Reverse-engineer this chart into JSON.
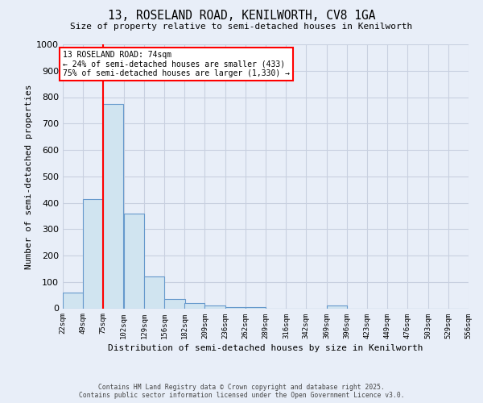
{
  "title": "13, ROSELAND ROAD, KENILWORTH, CV8 1GA",
  "subtitle": "Size of property relative to semi-detached houses in Kenilworth",
  "xlabel": "Distribution of semi-detached houses by size in Kenilworth",
  "ylabel": "Number of semi-detached properties",
  "footer_line1": "Contains HM Land Registry data © Crown copyright and database right 2025.",
  "footer_line2": "Contains public sector information licensed under the Open Government Licence v3.0.",
  "annotation_line1": "13 ROSELAND ROAD: 74sqm",
  "annotation_line2": "← 24% of semi-detached houses are smaller (433)",
  "annotation_line3": "75% of semi-detached houses are larger (1,330) →",
  "bar_color": "#d0e4f0",
  "bar_edge_color": "#6699cc",
  "background_color": "#e8eef8",
  "grid_color": "#c8d0e0",
  "red_line_x": 75,
  "bin_starts": [
    22,
    49,
    75,
    102,
    129,
    156,
    182,
    209,
    236,
    262,
    289,
    316,
    342,
    369,
    396,
    423,
    449,
    476,
    503,
    529,
    556
  ],
  "bar_heights": [
    60,
    415,
    775,
    360,
    120,
    35,
    20,
    10,
    5,
    5,
    0,
    0,
    0,
    10,
    0,
    0,
    0,
    0,
    0,
    0
  ],
  "ylim": [
    0,
    1000
  ],
  "yticks": [
    0,
    100,
    200,
    300,
    400,
    500,
    600,
    700,
    800,
    900,
    1000
  ],
  "bin_width": 27,
  "tick_labels": [
    "22sqm",
    "49sqm",
    "75sqm",
    "102sqm",
    "129sqm",
    "156sqm",
    "182sqm",
    "209sqm",
    "236sqm",
    "262sqm",
    "289sqm",
    "316sqm",
    "342sqm",
    "369sqm",
    "396sqm",
    "423sqm",
    "449sqm",
    "476sqm",
    "503sqm",
    "529sqm",
    "556sqm"
  ]
}
